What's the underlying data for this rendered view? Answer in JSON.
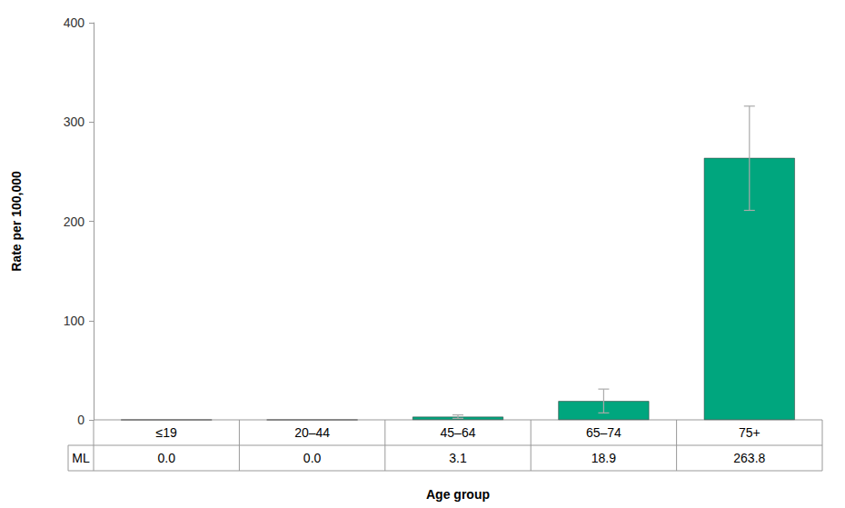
{
  "chart_data": {
    "type": "bar",
    "x_label": "Age group",
    "y_label": "Rate per 100,000",
    "categories": [
      "≤19",
      "20–44",
      "45–64",
      "65–74",
      "75+"
    ],
    "series": [
      {
        "name": "ML",
        "color": "#00a67e",
        "values": [
          0.0,
          0.0,
          3.1,
          18.9,
          263.8
        ],
        "value_labels": [
          "0.0",
          "0.0",
          "3.1",
          "18.9",
          "263.8"
        ],
        "error_low": [
          null,
          null,
          1.5,
          7,
          211
        ],
        "error_high": [
          null,
          null,
          5,
          31,
          316
        ]
      }
    ],
    "ylim": [
      0,
      400
    ],
    "yticks": [
      0,
      100,
      200,
      300,
      400
    ],
    "grid": false
  }
}
